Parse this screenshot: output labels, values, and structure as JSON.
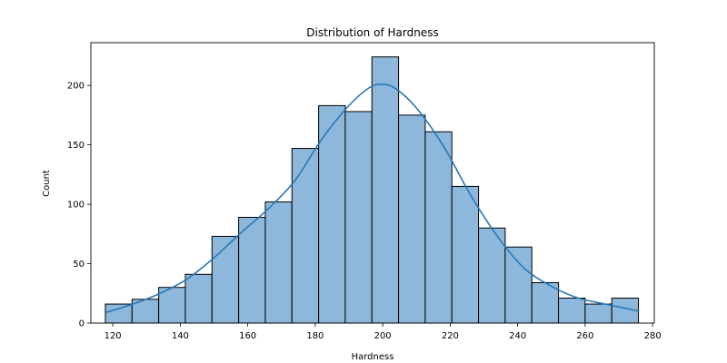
{
  "chart_data": {
    "type": "bar",
    "title": "Distribution of Hardness",
    "xlabel": "Hardness",
    "ylabel": "Count",
    "xlim": [
      113.5,
      280.5
    ],
    "ylim": [
      0,
      236
    ],
    "xticks": [
      120,
      140,
      160,
      180,
      200,
      220,
      240,
      260,
      280
    ],
    "yticks": [
      0,
      50,
      100,
      150,
      200
    ],
    "bin_edges": [
      117.8,
      125.7,
      133.6,
      141.5,
      149.4,
      157.3,
      165.2,
      173.1,
      181.0,
      188.9,
      196.8,
      204.7,
      212.6,
      220.5,
      228.4,
      236.3,
      244.2,
      252.1,
      260.0,
      267.9,
      275.8
    ],
    "values": [
      16,
      20,
      30,
      41,
      73,
      89,
      102,
      147,
      183,
      178,
      224,
      175,
      161,
      115,
      80,
      64,
      34,
      21,
      16,
      21
    ],
    "kde": {
      "x": [
        118,
        126,
        134,
        142,
        150,
        158,
        166,
        174,
        182,
        190,
        196,
        200,
        204,
        210,
        218,
        226,
        234,
        242,
        250,
        258,
        266,
        276
      ],
      "y": [
        9,
        16,
        25,
        37,
        55,
        76,
        96,
        120,
        155,
        183,
        198,
        201,
        197,
        181,
        149,
        108,
        73,
        46,
        31,
        21,
        16,
        10
      ]
    },
    "bar_color": "#8db8dc",
    "bar_edge_color": "#000000",
    "kde_color": "#2978b5",
    "grid": false,
    "legend": "none"
  }
}
